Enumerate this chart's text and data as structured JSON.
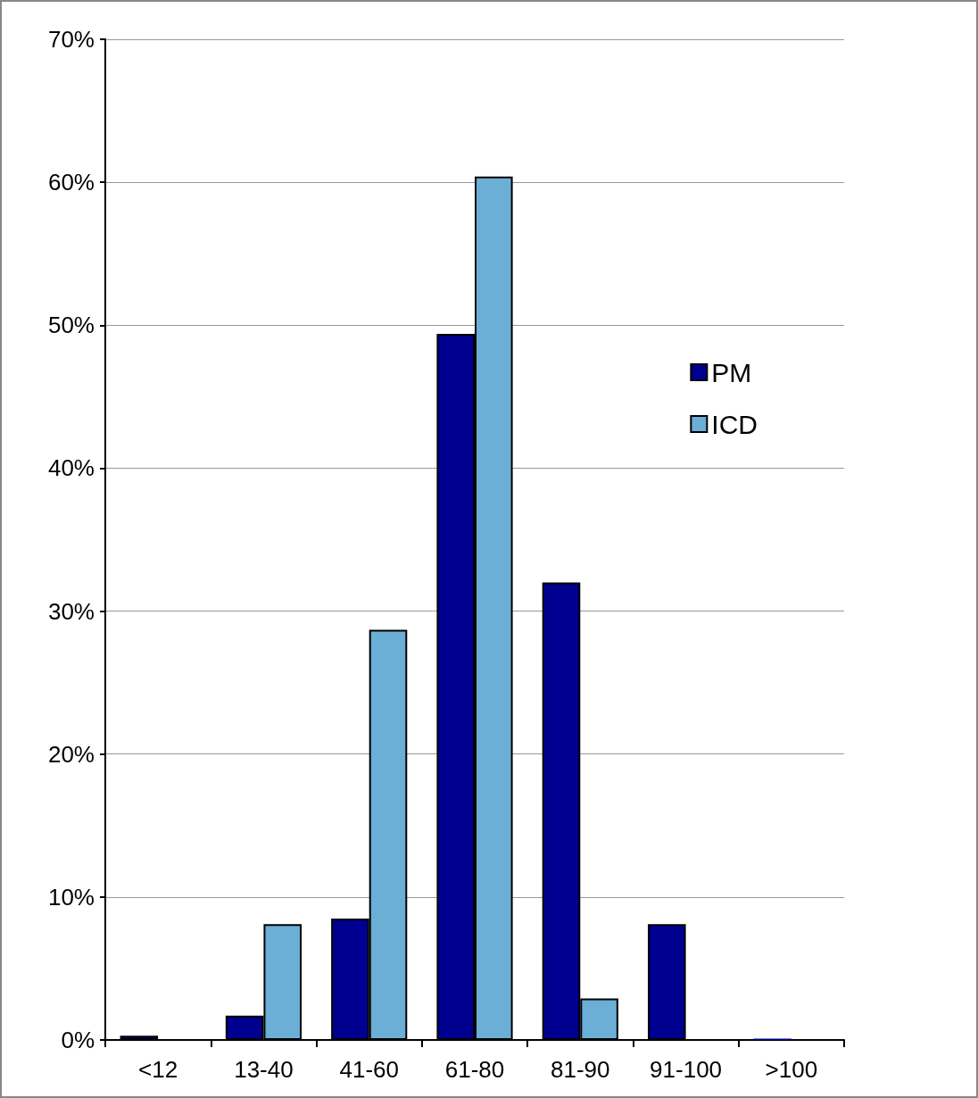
{
  "chart_data": {
    "type": "bar",
    "categories": [
      "<12",
      "13-40",
      "41-60",
      "61-80",
      "81-90",
      "91-100",
      ">100"
    ],
    "series": [
      {
        "name": "PM",
        "color": "#000090",
        "values": [
          0.3,
          1.7,
          8.5,
          49.4,
          32.0,
          8.1,
          0.1
        ]
      },
      {
        "name": "ICD",
        "color": "#6baed6",
        "values": [
          0,
          8.1,
          28.7,
          60.4,
          2.9,
          0,
          0
        ]
      }
    ],
    "ylim": [
      0,
      70
    ],
    "yticks": [
      {
        "value": 0,
        "label": "0%"
      },
      {
        "value": 10,
        "label": "10%"
      },
      {
        "value": 20,
        "label": "20%"
      },
      {
        "value": 30,
        "label": "30%"
      },
      {
        "value": 40,
        "label": "40%"
      },
      {
        "value": 50,
        "label": "50%"
      },
      {
        "value": 60,
        "label": "60%"
      },
      {
        "value": 70,
        "label": "70%"
      }
    ],
    "grid": "y",
    "legend": "top right"
  }
}
